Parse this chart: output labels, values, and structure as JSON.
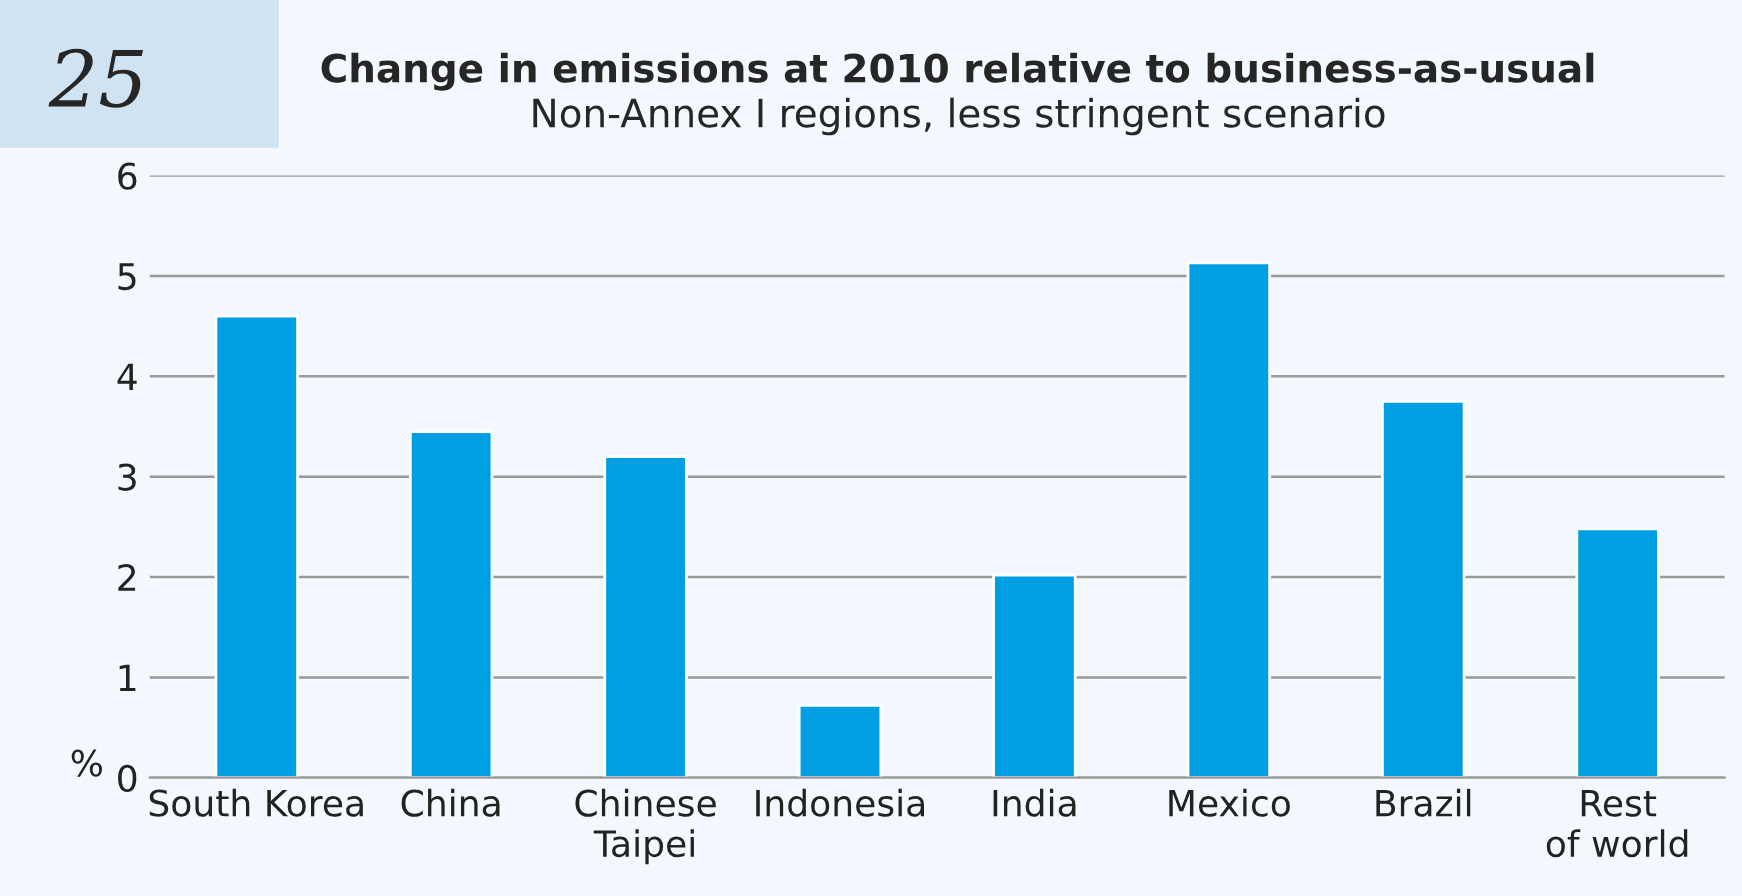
{
  "chart_data": {
    "type": "bar",
    "title": "Change in emissions at 2010 relative to business-as-usual",
    "subtitle": "Non-Annex I regions, less stringent scenario",
    "ylabel": "%",
    "annotations": [
      "25"
    ],
    "categories": [
      "South Korea",
      "China",
      "Chinese\nTaipei",
      "Indonesia",
      "India",
      "Mexico",
      "Brazil",
      "Rest\nof world"
    ],
    "values": [
      4.6,
      3.45,
      3.2,
      0.72,
      2.02,
      5.13,
      3.75,
      2.48
    ],
    "color": "#009fe3",
    "ylim": [
      0,
      6
    ],
    "yticks": [
      0,
      1,
      2,
      3,
      4,
      5,
      6
    ],
    "grid": "y",
    "legend": false
  }
}
